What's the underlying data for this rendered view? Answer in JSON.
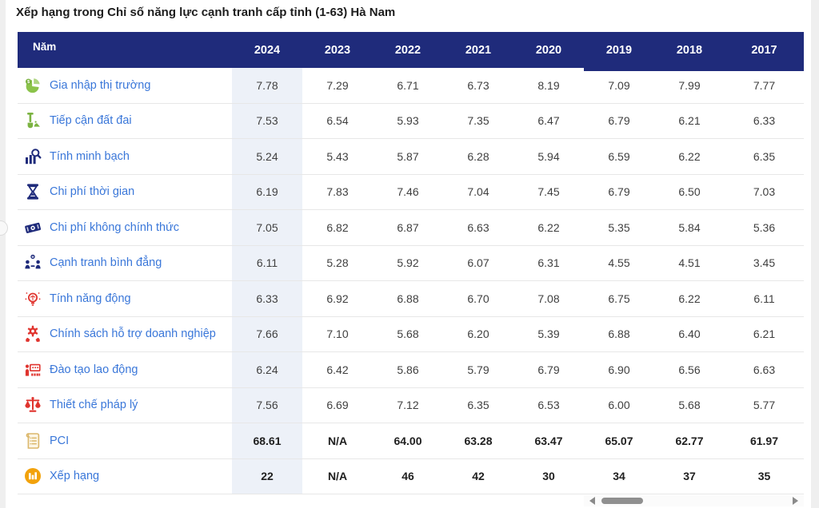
{
  "page": {
    "title": "Xếp hạng trong Chỉ số năng lực cạnh tranh cấp tỉnh (1-63) Hà Nam"
  },
  "table": {
    "header": {
      "label": "Năm",
      "years": [
        "2024",
        "2023",
        "2022",
        "2021",
        "2020",
        "2019",
        "2018",
        "2017"
      ]
    },
    "rows": [
      {
        "label": "Gia nhập thị trường",
        "icon": "market-entry-icon",
        "emphasis": false,
        "values": [
          "7.78",
          "7.29",
          "6.71",
          "6.73",
          "8.19",
          "7.09",
          "7.99",
          "7.77"
        ]
      },
      {
        "label": "Tiếp cận đất đai",
        "icon": "land-access-icon",
        "emphasis": false,
        "values": [
          "7.53",
          "6.54",
          "5.93",
          "7.35",
          "6.47",
          "6.79",
          "6.21",
          "6.33"
        ]
      },
      {
        "label": "Tính minh bạch",
        "icon": "transparency-icon",
        "emphasis": false,
        "values": [
          "5.24",
          "5.43",
          "5.87",
          "6.28",
          "5.94",
          "6.59",
          "6.22",
          "6.35"
        ]
      },
      {
        "label": "Chi phí thời gian",
        "icon": "time-cost-icon",
        "emphasis": false,
        "values": [
          "6.19",
          "7.83",
          "7.46",
          "7.04",
          "7.45",
          "6.79",
          "6.50",
          "7.03"
        ]
      },
      {
        "label": "Chi phí không chính thức",
        "icon": "informal-charges-icon",
        "emphasis": false,
        "values": [
          "7.05",
          "6.82",
          "6.87",
          "6.63",
          "6.22",
          "5.35",
          "5.84",
          "5.36"
        ]
      },
      {
        "label": "Cạnh tranh bình đẳng",
        "icon": "fair-competition-icon",
        "emphasis": false,
        "values": [
          "6.11",
          "5.28",
          "5.92",
          "6.07",
          "6.31",
          "4.55",
          "4.51",
          "3.45"
        ]
      },
      {
        "label": "Tính năng động",
        "icon": "proactivity-icon",
        "emphasis": false,
        "values": [
          "6.33",
          "6.92",
          "6.88",
          "6.70",
          "7.08",
          "6.75",
          "6.22",
          "6.11"
        ]
      },
      {
        "label": "Chính sách hỗ trợ doanh nghiệp",
        "icon": "business-support-icon",
        "emphasis": false,
        "values": [
          "7.66",
          "7.10",
          "5.68",
          "6.20",
          "5.39",
          "6.88",
          "6.40",
          "6.21"
        ]
      },
      {
        "label": "Đào tạo lao động",
        "icon": "labor-training-icon",
        "emphasis": false,
        "values": [
          "6.24",
          "6.42",
          "5.86",
          "5.79",
          "6.79",
          "6.90",
          "6.56",
          "6.63"
        ]
      },
      {
        "label": "Thiết chế pháp lý",
        "icon": "legal-institutions-icon",
        "emphasis": false,
        "values": [
          "7.56",
          "6.69",
          "7.12",
          "6.35",
          "6.53",
          "6.00",
          "5.68",
          "5.77"
        ]
      },
      {
        "label": "PCI",
        "icon": "pci-document-icon",
        "emphasis": true,
        "values": [
          "68.61",
          "N/A",
          "64.00",
          "63.28",
          "63.47",
          "65.07",
          "62.77",
          "61.97"
        ]
      },
      {
        "label": "Xếp hạng",
        "icon": "ranking-icon",
        "emphasis": true,
        "values": [
          "22",
          "N/A",
          "46",
          "42",
          "30",
          "34",
          "37",
          "35"
        ]
      }
    ]
  },
  "colors": {
    "header_bg": "#1F2B7B",
    "accent_blue": "#3A77D9",
    "col2024_bg": "#EDF1F8",
    "icon_green": "#7CB342",
    "icon_navy": "#1F2B7B",
    "icon_red": "#E0342E",
    "icon_amber": "#F2A20C",
    "icon_tan": "#DBB76B"
  }
}
